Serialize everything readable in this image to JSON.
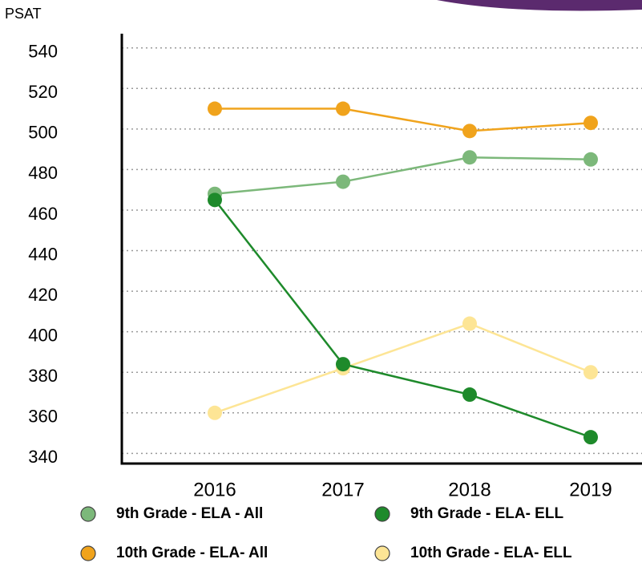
{
  "chart_data": {
    "type": "line",
    "y_label": "PSAT",
    "categories": [
      "2016",
      "2017",
      "2018",
      "2019"
    ],
    "series": [
      {
        "name": "9th Grade - ELA - All",
        "color": "#7cb87a",
        "values": [
          468,
          474,
          486,
          485
        ]
      },
      {
        "name": "9th Grade - ELA- ELL",
        "color": "#1e8a2b",
        "values": [
          465,
          384,
          369,
          348
        ]
      },
      {
        "name": "10th Grade - ELA- All",
        "color": "#f0a31c",
        "values": [
          510,
          510,
          499,
          503
        ]
      },
      {
        "name": "10th Grade - ELA- ELL",
        "color": "#fde595",
        "values": [
          360,
          382,
          404,
          380
        ]
      }
    ],
    "ylim": [
      335,
      547
    ],
    "yticks": [
      340,
      360,
      380,
      400,
      420,
      440,
      460,
      480,
      500,
      520,
      540
    ],
    "grid": true
  }
}
